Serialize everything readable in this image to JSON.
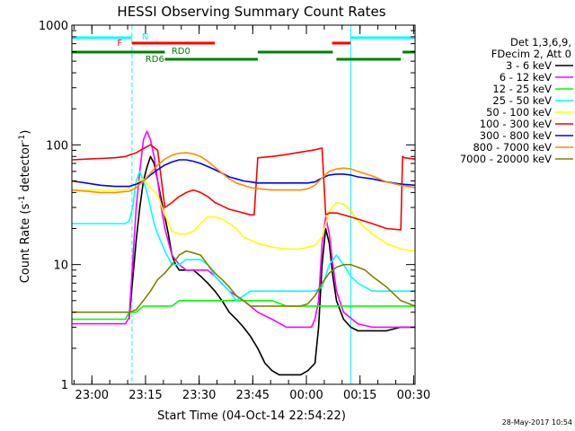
{
  "chart_data": {
    "type": "line",
    "title": "HESSI Observing Summary Count Rates",
    "xlabel": "Start Time (04-Oct-14 22:54:22)",
    "ylabel": "Count Rate (s⁻¹ detector⁻¹)",
    "y_scale": "log",
    "ylim": [
      1,
      1000
    ],
    "y_ticks": [
      {
        "v": 1,
        "label": "1"
      },
      {
        "v": 10,
        "label": "10"
      },
      {
        "v": 100,
        "label": "100"
      },
      {
        "v": 1000,
        "label": "1000"
      }
    ],
    "x_unit": "minutes after 22:54:22",
    "xlim": [
      0,
      96
    ],
    "x_ticks": [
      {
        "t": 5.6,
        "label": "23:00"
      },
      {
        "t": 20.6,
        "label": "23:15"
      },
      {
        "t": 35.6,
        "label": "23:30"
      },
      {
        "t": 50.6,
        "label": "23:45"
      },
      {
        "t": 65.6,
        "label": "00:00"
      },
      {
        "t": 80.6,
        "label": "00:15"
      },
      {
        "t": 95.6,
        "label": "00:30"
      }
    ],
    "legend_placement": "right",
    "legend_header": [
      "Det 1,3,6,9,",
      "FDecim 2, Att 0"
    ],
    "timestamp": "28-May-2017 10:54",
    "series": [
      {
        "name": "3 - 6 keV",
        "color": "#000000",
        "x": [
          16,
          18,
          19,
          20,
          21,
          22,
          23,
          24,
          25,
          26,
          27,
          28,
          29,
          30,
          32,
          34,
          36,
          38,
          40,
          42,
          44,
          46,
          48,
          50,
          52,
          54,
          56,
          58,
          60,
          62,
          64,
          66,
          68,
          69,
          70,
          71,
          72,
          73,
          74,
          76,
          78,
          80,
          84,
          88,
          92,
          96
        ],
        "y": [
          3.5,
          16,
          30,
          50,
          65,
          80,
          70,
          50,
          35,
          25,
          18,
          12,
          10,
          9,
          9,
          9,
          8,
          7,
          6,
          5,
          4,
          3.5,
          3,
          2.5,
          2,
          1.5,
          1.3,
          1.2,
          1.2,
          1.2,
          1.2,
          1.3,
          1.5,
          3,
          10,
          20,
          15,
          8,
          5,
          3.5,
          3,
          2.8,
          2.8,
          2.8,
          3,
          3
        ]
      },
      {
        "name": "6 - 12 keV",
        "color": "#ff00ff",
        "x": [
          0,
          4,
          8,
          12,
          15,
          16,
          18,
          19,
          20,
          21,
          22,
          23,
          24,
          25,
          26,
          28,
          30,
          32,
          34,
          36,
          38,
          40,
          44,
          48,
          52,
          56,
          60,
          64,
          67,
          68,
          69,
          70,
          71,
          72,
          73,
          74,
          76,
          80,
          84,
          88,
          92,
          96
        ],
        "y": [
          3.2,
          3.2,
          3.2,
          3.2,
          3.2,
          3.6,
          30,
          60,
          110,
          130,
          110,
          80,
          50,
          30,
          20,
          12,
          10,
          9,
          9,
          9,
          9,
          8,
          6,
          5,
          4,
          3.5,
          3,
          3,
          3,
          3.5,
          5,
          15,
          25,
          18,
          10,
          6,
          4,
          3.2,
          3,
          3,
          3,
          3
        ]
      },
      {
        "name": "12 - 25 keV",
        "color": "#00ff00",
        "x": [
          0,
          4,
          8,
          12,
          15,
          16,
          18,
          20,
          22,
          24,
          26,
          28,
          30,
          32,
          34,
          36,
          38,
          40,
          44,
          48,
          52,
          56,
          60,
          64,
          68,
          72,
          76,
          80,
          84,
          88,
          92,
          96
        ],
        "y": [
          3.5,
          3.5,
          3.5,
          3.5,
          3.5,
          4,
          4,
          4.5,
          4.5,
          4.5,
          4.5,
          4.5,
          5,
          5,
          5,
          5,
          5,
          5,
          5,
          5,
          5,
          5,
          4.5,
          4.5,
          4.5,
          4.5,
          4.5,
          4.5,
          4.5,
          4.5,
          4.5,
          4.5
        ]
      },
      {
        "name": "25 - 50 keV",
        "color": "#00ffff",
        "x": [
          0,
          4,
          8,
          12,
          15,
          16,
          17,
          18,
          19,
          20,
          21,
          22,
          23,
          24,
          26,
          28,
          30,
          32,
          34,
          36,
          38,
          40,
          42,
          44,
          46,
          48,
          50,
          52,
          56,
          60,
          64,
          68,
          70,
          72,
          74,
          76,
          78,
          80,
          84,
          88,
          92,
          96
        ],
        "y": [
          22,
          22,
          22,
          22,
          22,
          23,
          30,
          50,
          60,
          50,
          40,
          30,
          22,
          18,
          13,
          10,
          10,
          11,
          11,
          11,
          10,
          8,
          7,
          6,
          5,
          5.5,
          6,
          6,
          6,
          6,
          6,
          6,
          6.5,
          10,
          12,
          10,
          8,
          7,
          6,
          6,
          6,
          6
        ]
      },
      {
        "name": "50 - 100 keV",
        "color": "#ffff00",
        "x": [
          0,
          4,
          8,
          12,
          15,
          16,
          18,
          20,
          22,
          24,
          26,
          28,
          30,
          32,
          34,
          36,
          38,
          40,
          42,
          44,
          46,
          48,
          50,
          52,
          56,
          60,
          64,
          66,
          68,
          70,
          72,
          74,
          76,
          78,
          80,
          84,
          88,
          92,
          96
        ],
        "y": [
          42,
          42,
          42,
          42,
          42,
          44,
          48,
          52,
          44,
          38,
          26,
          19,
          18,
          18,
          19,
          22,
          25,
          25,
          24,
          22,
          20,
          17,
          16,
          15,
          14,
          13.5,
          13.5,
          14,
          14.5,
          17,
          28,
          33,
          32,
          28,
          23,
          18,
          15,
          13.5,
          13
        ]
      },
      {
        "name": "100 - 300 keV",
        "color": "#ff0000",
        "x": [
          0,
          4,
          8,
          12,
          15,
          16,
          18,
          20,
          22,
          24,
          26,
          28,
          30,
          32,
          34,
          36,
          38,
          40,
          42,
          44,
          46,
          48,
          50,
          51,
          52,
          56,
          60,
          64,
          68,
          70,
          71,
          72,
          74,
          76,
          78,
          80,
          84,
          88,
          92,
          92.5,
          93,
          96
        ],
        "y": [
          75,
          76,
          77,
          78,
          80,
          82,
          86,
          93,
          100,
          90,
          30,
          33,
          37,
          40,
          42,
          40,
          37,
          33,
          31,
          29,
          28,
          27,
          26,
          26,
          78,
          80,
          83,
          87,
          91,
          94,
          26,
          27,
          27,
          26,
          25,
          24,
          22,
          20,
          19.5,
          80,
          78,
          76
        ]
      },
      {
        "name": "300 - 800 keV",
        "color": "#0000ff",
        "x": [
          0,
          4,
          8,
          12,
          16,
          18,
          20,
          22,
          24,
          26,
          28,
          30,
          32,
          34,
          36,
          38,
          40,
          42,
          44,
          46,
          48,
          50,
          52,
          56,
          60,
          64,
          66,
          68,
          70,
          72,
          74,
          76,
          78,
          80,
          84,
          88,
          92,
          96
        ],
        "y": [
          50,
          48,
          46,
          45,
          45,
          47,
          50,
          56,
          62,
          68,
          72,
          75,
          75,
          73,
          70,
          66,
          62,
          58,
          54,
          52,
          50,
          49,
          48,
          48,
          48,
          48,
          48,
          49,
          53,
          56,
          57,
          57,
          56,
          54,
          52,
          49,
          47,
          46
        ]
      },
      {
        "name": "800 - 7000 keV",
        "color": "#ff8c00",
        "x": [
          0,
          4,
          8,
          12,
          16,
          18,
          20,
          22,
          24,
          26,
          28,
          30,
          32,
          34,
          36,
          38,
          40,
          42,
          44,
          46,
          48,
          50,
          52,
          56,
          60,
          64,
          66,
          68,
          70,
          72,
          74,
          76,
          78,
          80,
          84,
          88,
          92,
          96
        ],
        "y": [
          42,
          41,
          40,
          40,
          41,
          44,
          50,
          58,
          68,
          76,
          82,
          85,
          86,
          84,
          80,
          73,
          65,
          58,
          52,
          48,
          46,
          44,
          43,
          42,
          42,
          42,
          43,
          46,
          53,
          60,
          63,
          64,
          63,
          60,
          55,
          49,
          46,
          44
        ]
      },
      {
        "name": "7000 - 20000 keV",
        "color": "#808000",
        "x": [
          0,
          4,
          8,
          12,
          16,
          18,
          20,
          22,
          24,
          26,
          28,
          30,
          32,
          34,
          36,
          38,
          40,
          42,
          44,
          46,
          48,
          50,
          52,
          56,
          60,
          64,
          66,
          68,
          70,
          72,
          74,
          76,
          78,
          80,
          82,
          84,
          88,
          92,
          96
        ],
        "y": [
          4,
          4,
          4,
          4,
          4,
          4.2,
          5,
          6,
          7.5,
          8.5,
          10,
          12,
          13,
          12.5,
          12,
          10,
          8.5,
          7.5,
          6.5,
          5.5,
          5,
          4.5,
          4.5,
          4.5,
          4.5,
          4.5,
          4.7,
          5.5,
          7,
          8.5,
          9.5,
          10,
          10,
          9.5,
          9,
          8,
          6.5,
          5,
          4.5
        ]
      }
    ],
    "annotations": [
      {
        "text": "N",
        "x": 19.5,
        "color": "#00ffff"
      },
      {
        "text": "F",
        "x": 14.4,
        "color": "#ff0000"
      },
      {
        "text": "RD0",
        "x": 30.5,
        "color": "#008000"
      },
      {
        "text": "RD6",
        "x": 23.2,
        "color": "#008000"
      }
    ],
    "flag_bars": [
      {
        "flag": "N",
        "color": "#00ffff",
        "segments": [
          [
            0,
            16.8
          ],
          [
            78,
            96
          ]
        ]
      },
      {
        "flag": "F",
        "color": "#ff0000",
        "segments": [
          [
            16.8,
            40
          ],
          [
            72.8,
            78
          ]
        ]
      },
      {
        "flag": "RD0",
        "color": "#008000",
        "segments": [
          [
            0,
            26
          ],
          [
            52,
            73
          ],
          [
            92.5,
            96
          ]
        ]
      },
      {
        "flag": "RD6",
        "color": "#008000",
        "segments": [
          [
            26,
            52
          ],
          [
            74,
            92
          ]
        ]
      }
    ],
    "vlines": [
      {
        "x": 0,
        "style": "solid",
        "color": "#00ffff"
      },
      {
        "x": 16.8,
        "style": "dashed",
        "color": "#00ffff"
      },
      {
        "x": 78,
        "style": "solid",
        "color": "#00ffff"
      },
      {
        "x": 96,
        "style": "dashed",
        "color": "#00ffff"
      }
    ]
  }
}
